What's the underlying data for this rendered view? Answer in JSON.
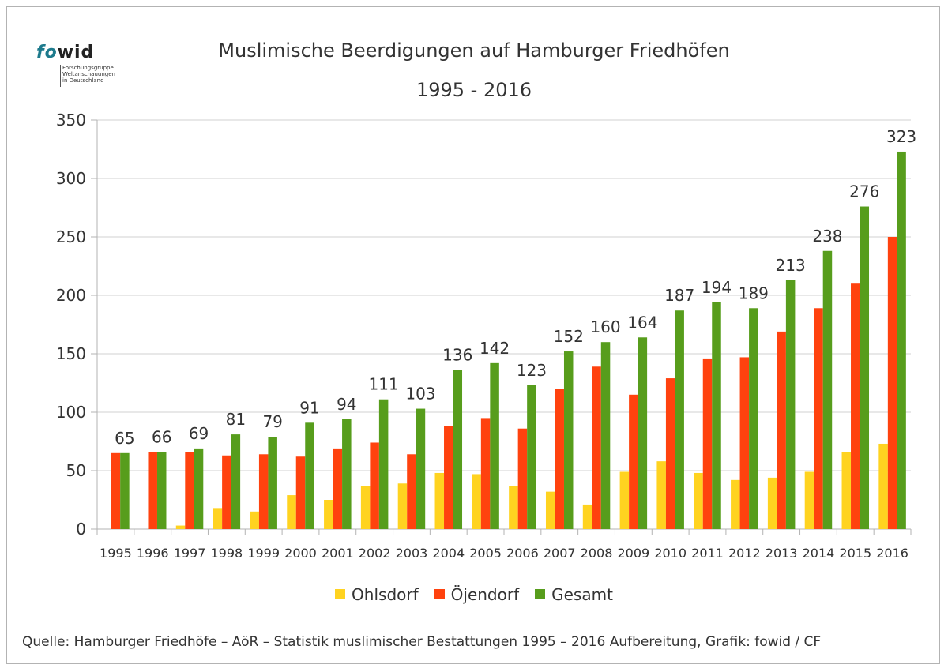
{
  "logo": {
    "fo": "fo",
    "wid": "wid",
    "subtitle": [
      "Forschungsgruppe",
      "Weltanschauungen",
      "in Deutschland"
    ]
  },
  "chart_data": {
    "type": "bar",
    "title": "Muslimische Beerdigungen auf Hamburger Friedhöfen",
    "subtitle": "1995 - 2016",
    "xlabel": "",
    "ylabel": "",
    "ylim": [
      0,
      350
    ],
    "yticks": [
      0,
      50,
      100,
      150,
      200,
      250,
      300,
      350
    ],
    "grid": true,
    "legend_position": "bottom",
    "categories": [
      "1995",
      "1996",
      "1997",
      "1998",
      "1999",
      "2000",
      "2001",
      "2002",
      "2003",
      "2004",
      "2005",
      "2006",
      "2007",
      "2008",
      "2009",
      "2010",
      "2011",
      "2012",
      "2013",
      "2014",
      "2015",
      "2016"
    ],
    "series": [
      {
        "name": "Ohlsdorf",
        "color": "#ffd320",
        "values": [
          0,
          0,
          3,
          18,
          15,
          29,
          25,
          37,
          39,
          48,
          47,
          37,
          32,
          21,
          49,
          58,
          48,
          42,
          44,
          49,
          66,
          73
        ]
      },
      {
        "name": "Öjendorf",
        "color": "#ff420e",
        "values": [
          65,
          66,
          66,
          63,
          64,
          62,
          69,
          74,
          64,
          88,
          95,
          86,
          120,
          139,
          115,
          129,
          146,
          147,
          169,
          189,
          210,
          250
        ]
      },
      {
        "name": "Gesamt",
        "color": "#579d1c",
        "values": [
          65,
          66,
          69,
          81,
          79,
          91,
          94,
          111,
          103,
          136,
          142,
          123,
          152,
          160,
          164,
          187,
          194,
          189,
          213,
          238,
          276,
          323
        ],
        "data_labels": true
      }
    ]
  },
  "footer": "Quelle: Hamburger Friedhöfe – AöR – Statistik muslimischer Bestattungen 1995 – 2016  Aufbereitung, Grafik: fowid / CF"
}
